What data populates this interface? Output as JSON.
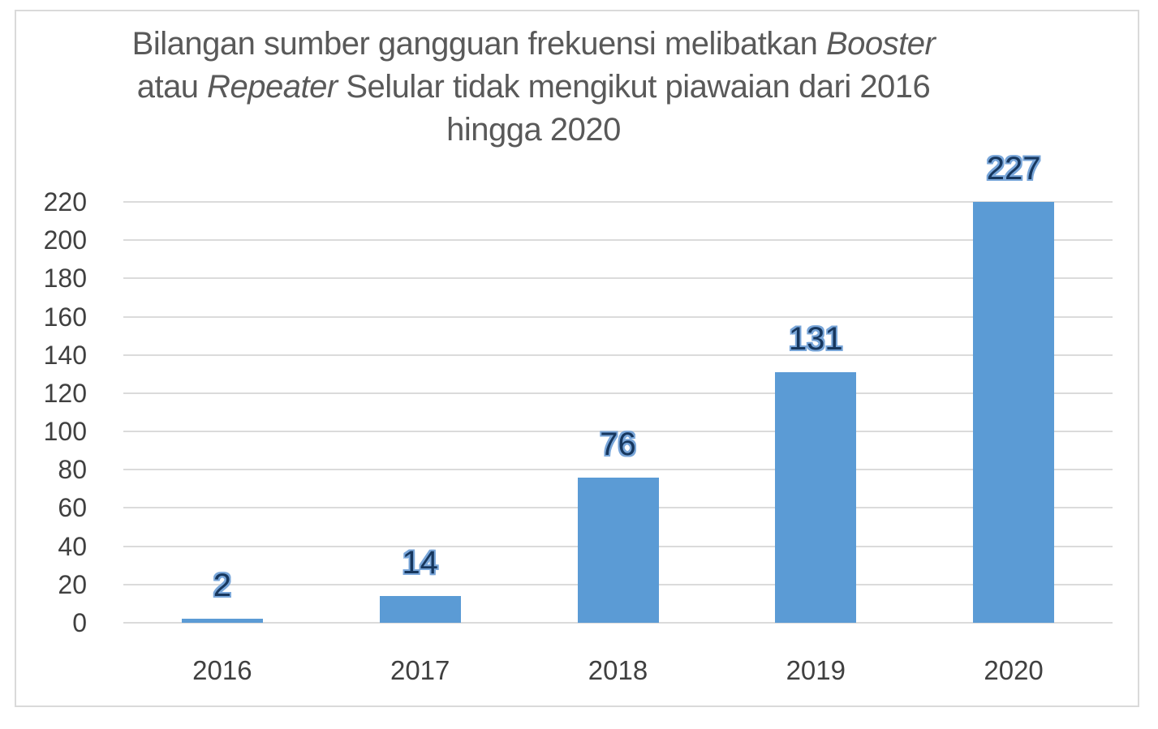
{
  "chart_data": {
    "type": "bar",
    "title": "Bilangan sumber gangguan frekuensi melibatkan Booster atau Repeater Selular tidak mengikut piawaian dari 2016 hingga 2020",
    "title_lines": [
      {
        "pre": "Bilangan sumber gangguan frekuensi melibatkan ",
        "italic": "Booster",
        "post": ""
      },
      {
        "pre": "atau ",
        "italic": "Repeater",
        "post": " Selular tidak mengikut piawaian dari 2016"
      },
      {
        "pre": "hingga 2020",
        "italic": "",
        "post": ""
      }
    ],
    "categories": [
      "2016",
      "2017",
      "2018",
      "2019",
      "2020"
    ],
    "values": [
      2,
      14,
      76,
      131,
      227
    ],
    "data_labels": [
      "2",
      "14",
      "76",
      "131",
      "227"
    ],
    "xlabel": "",
    "ylabel": "",
    "ylim": [
      0,
      220
    ],
    "yticks": [
      0,
      20,
      40,
      60,
      80,
      100,
      120,
      140,
      160,
      180,
      200,
      220
    ],
    "grid": true,
    "legend_position": "none",
    "colors": {
      "bar": "#5B9BD5",
      "data_label_fill": "#17375E",
      "data_label_outline": "#79A6D9",
      "title_text": "#595959",
      "axis_text": "#404040",
      "gridline": "#DBDBDB",
      "frame_border": "#DADADA",
      "background": "#FFFFFF"
    }
  }
}
